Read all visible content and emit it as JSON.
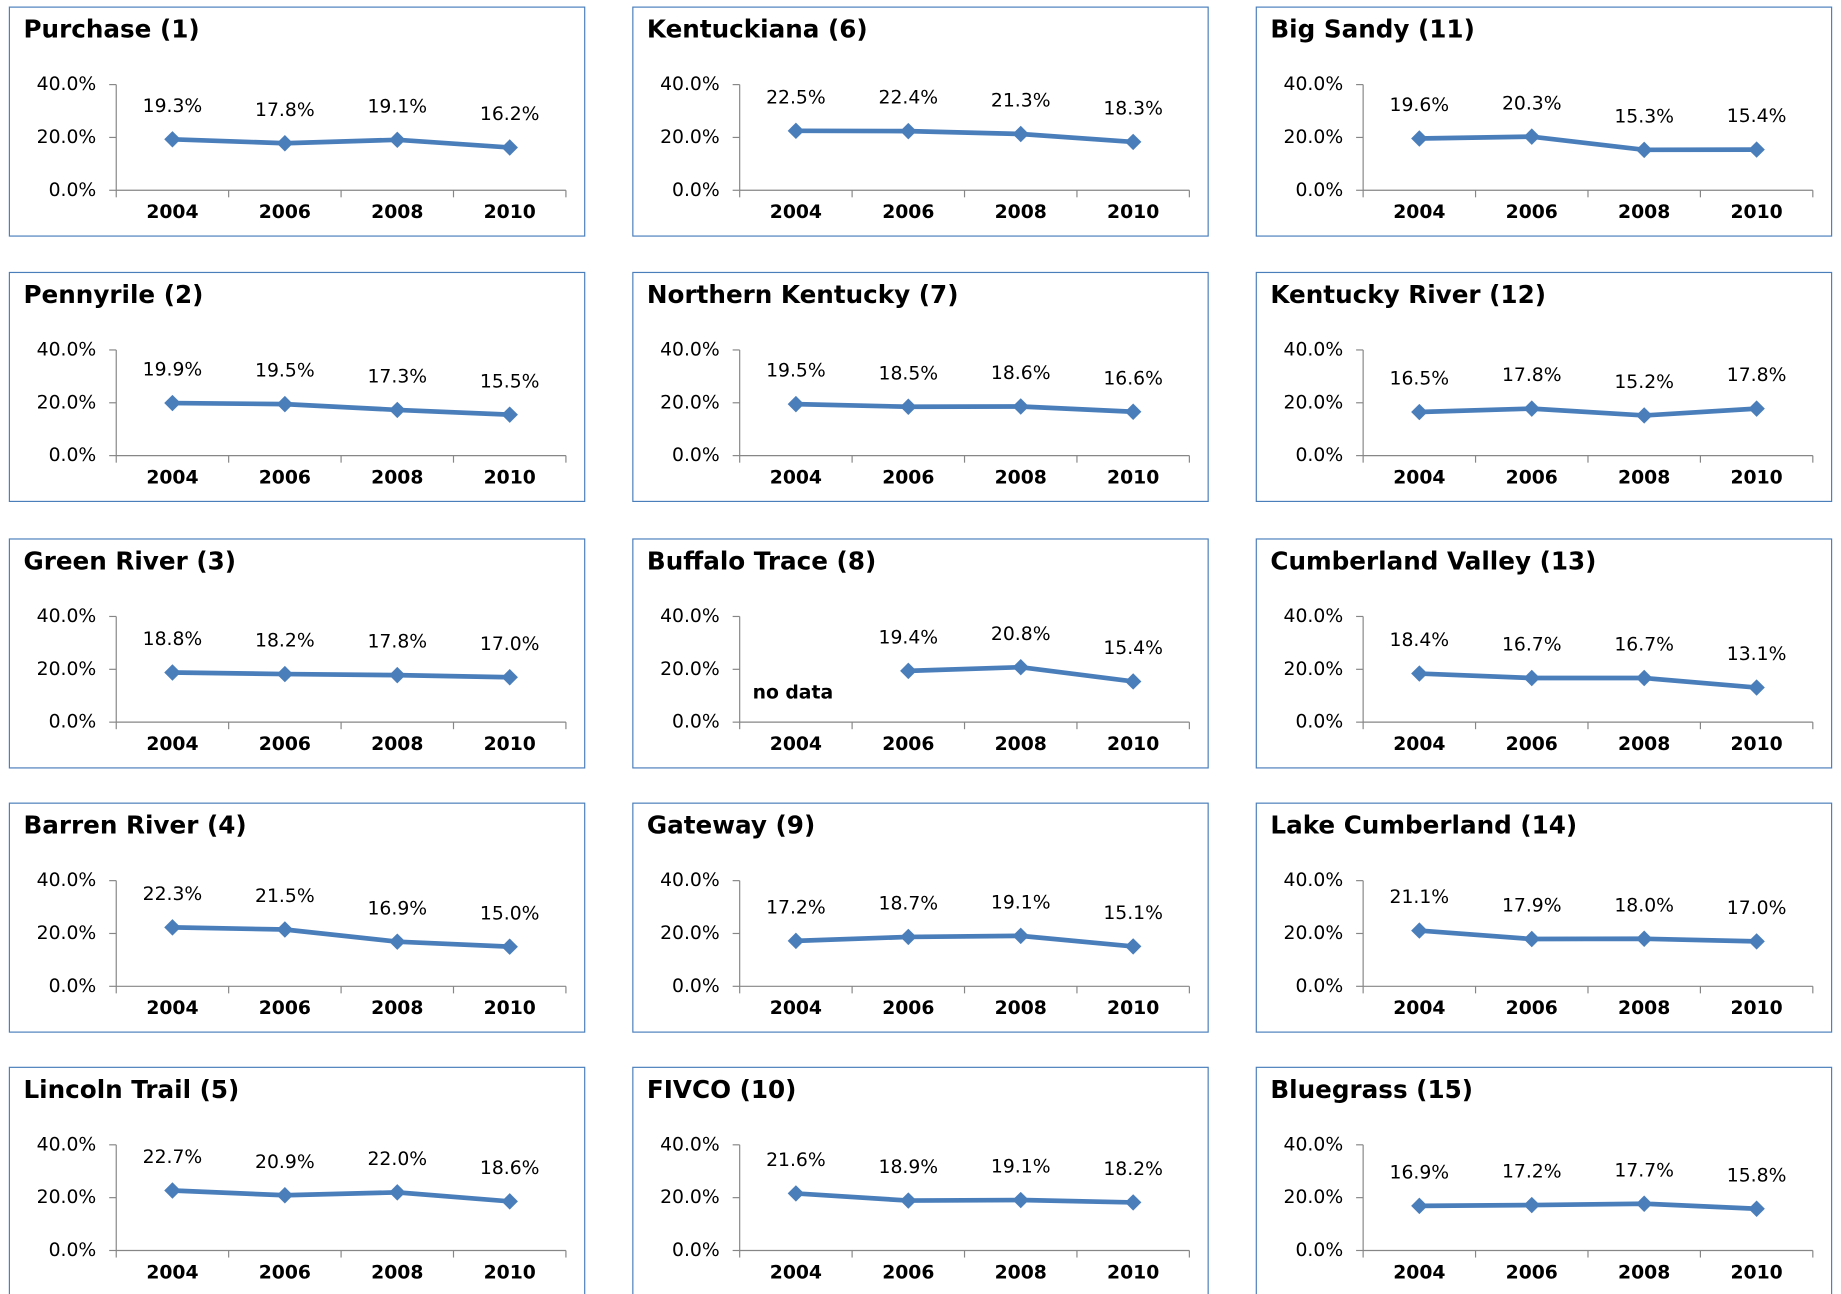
{
  "chart_data": [
    {
      "type": "line",
      "title": "Purchase (1)",
      "categories": [
        "2004",
        "2006",
        "2008",
        "2010"
      ],
      "values": [
        19.3,
        17.8,
        19.1,
        16.2
      ],
      "value_labels": [
        "19.3%",
        "17.8%",
        "19.1%",
        "16.2%"
      ],
      "color": "#4a7ebb",
      "ylim": [
        0,
        40
      ],
      "yticks": [
        {
          "value": 0,
          "label": "0.0%"
        },
        {
          "value": 20,
          "label": "20.0%"
        },
        {
          "value": 40,
          "label": "40.0%"
        }
      ]
    },
    {
      "type": "line",
      "title": "Pennyrile (2)",
      "categories": [
        "2004",
        "2006",
        "2008",
        "2010"
      ],
      "values": [
        19.9,
        19.5,
        17.3,
        15.5
      ],
      "value_labels": [
        "19.9%",
        "19.5%",
        "17.3%",
        "15.5%"
      ],
      "color": "#4a7ebb",
      "ylim": [
        0,
        40
      ],
      "yticks": [
        {
          "value": 0,
          "label": "0.0%"
        },
        {
          "value": 20,
          "label": "20.0%"
        },
        {
          "value": 40,
          "label": "40.0%"
        }
      ]
    },
    {
      "type": "line",
      "title": "Green River (3)",
      "categories": [
        "2004",
        "2006",
        "2008",
        "2010"
      ],
      "values": [
        18.8,
        18.2,
        17.8,
        17.0
      ],
      "value_labels": [
        "18.8%",
        "18.2%",
        "17.8%",
        "17.0%"
      ],
      "color": "#4a7ebb",
      "ylim": [
        0,
        40
      ],
      "yticks": [
        {
          "value": 0,
          "label": "0.0%"
        },
        {
          "value": 20,
          "label": "20.0%"
        },
        {
          "value": 40,
          "label": "40.0%"
        }
      ]
    },
    {
      "type": "line",
      "title": "Barren River (4)",
      "categories": [
        "2004",
        "2006",
        "2008",
        "2010"
      ],
      "values": [
        22.3,
        21.5,
        16.9,
        15.0
      ],
      "value_labels": [
        "22.3%",
        "21.5%",
        "16.9%",
        "15.0%"
      ],
      "color": "#4a7ebb",
      "ylim": [
        0,
        40
      ],
      "yticks": [
        {
          "value": 0,
          "label": "0.0%"
        },
        {
          "value": 20,
          "label": "20.0%"
        },
        {
          "value": 40,
          "label": "40.0%"
        }
      ]
    },
    {
      "type": "line",
      "title": "Lincoln Trail (5)",
      "categories": [
        "2004",
        "2006",
        "2008",
        "2010"
      ],
      "values": [
        22.7,
        20.9,
        22.0,
        18.6
      ],
      "value_labels": [
        "22.7%",
        "20.9%",
        "22.0%",
        "18.6%"
      ],
      "color": "#4a7ebb",
      "ylim": [
        0,
        40
      ],
      "yticks": [
        {
          "value": 0,
          "label": "0.0%"
        },
        {
          "value": 20,
          "label": "20.0%"
        },
        {
          "value": 40,
          "label": "40.0%"
        }
      ]
    },
    {
      "type": "line",
      "title": "Kentuckiana (6)",
      "categories": [
        "2004",
        "2006",
        "2008",
        "2010"
      ],
      "values": [
        22.5,
        22.4,
        21.3,
        18.3
      ],
      "value_labels": [
        "22.5%",
        "22.4%",
        "21.3%",
        "18.3%"
      ],
      "color": "#4a7ebb",
      "ylim": [
        0,
        40
      ],
      "yticks": [
        {
          "value": 0,
          "label": "0.0%"
        },
        {
          "value": 20,
          "label": "20.0%"
        },
        {
          "value": 40,
          "label": "40.0%"
        }
      ]
    },
    {
      "type": "line",
      "title": "Northern Kentucky (7)",
      "categories": [
        "2004",
        "2006",
        "2008",
        "2010"
      ],
      "values": [
        19.5,
        18.5,
        18.6,
        16.6
      ],
      "value_labels": [
        "19.5%",
        "18.5%",
        "18.6%",
        "16.6%"
      ],
      "color": "#4a7ebb",
      "ylim": [
        0,
        40
      ],
      "yticks": [
        {
          "value": 0,
          "label": "0.0%"
        },
        {
          "value": 20,
          "label": "20.0%"
        },
        {
          "value": 40,
          "label": "40.0%"
        }
      ]
    },
    {
      "type": "line",
      "title": "Buffalo Trace (8)",
      "categories": [
        "2004",
        "2006",
        "2008",
        "2010"
      ],
      "values": [
        null,
        19.4,
        20.8,
        15.4
      ],
      "value_labels": [
        null,
        "19.4%",
        "20.8%",
        "15.4%"
      ],
      "annotation": "no data",
      "color": "#4a7ebb",
      "ylim": [
        0,
        40
      ],
      "yticks": [
        {
          "value": 0,
          "label": "0.0%"
        },
        {
          "value": 20,
          "label": "20.0%"
        },
        {
          "value": 40,
          "label": "40.0%"
        }
      ]
    },
    {
      "type": "line",
      "title": "Gateway (9)",
      "categories": [
        "2004",
        "2006",
        "2008",
        "2010"
      ],
      "values": [
        17.2,
        18.7,
        19.1,
        15.1
      ],
      "value_labels": [
        "17.2%",
        "18.7%",
        "19.1%",
        "15.1%"
      ],
      "color": "#4a7ebb",
      "ylim": [
        0,
        40
      ],
      "yticks": [
        {
          "value": 0,
          "label": "0.0%"
        },
        {
          "value": 20,
          "label": "20.0%"
        },
        {
          "value": 40,
          "label": "40.0%"
        }
      ]
    },
    {
      "type": "line",
      "title": "FIVCO (10)",
      "categories": [
        "2004",
        "2006",
        "2008",
        "2010"
      ],
      "values": [
        21.6,
        18.9,
        19.1,
        18.2
      ],
      "value_labels": [
        "21.6%",
        "18.9%",
        "19.1%",
        "18.2%"
      ],
      "color": "#4a7ebb",
      "ylim": [
        0,
        40
      ],
      "yticks": [
        {
          "value": 0,
          "label": "0.0%"
        },
        {
          "value": 20,
          "label": "20.0%"
        },
        {
          "value": 40,
          "label": "40.0%"
        }
      ]
    },
    {
      "type": "line",
      "title": "Big Sandy (11)",
      "categories": [
        "2004",
        "2006",
        "2008",
        "2010"
      ],
      "values": [
        19.6,
        20.3,
        15.3,
        15.4
      ],
      "value_labels": [
        "19.6%",
        "20.3%",
        "15.3%",
        "15.4%"
      ],
      "color": "#4a7ebb",
      "ylim": [
        0,
        40
      ],
      "yticks": [
        {
          "value": 0,
          "label": "0.0%"
        },
        {
          "value": 20,
          "label": "20.0%"
        },
        {
          "value": 40,
          "label": "40.0%"
        }
      ]
    },
    {
      "type": "line",
      "title": "Kentucky River (12)",
      "categories": [
        "2004",
        "2006",
        "2008",
        "2010"
      ],
      "values": [
        16.5,
        17.8,
        15.2,
        17.8
      ],
      "value_labels": [
        "16.5%",
        "17.8%",
        "15.2%",
        "17.8%"
      ],
      "color": "#4a7ebb",
      "ylim": [
        0,
        40
      ],
      "yticks": [
        {
          "value": 0,
          "label": "0.0%"
        },
        {
          "value": 20,
          "label": "20.0%"
        },
        {
          "value": 40,
          "label": "40.0%"
        }
      ]
    },
    {
      "type": "line",
      "title": "Cumberland Valley (13)",
      "categories": [
        "2004",
        "2006",
        "2008",
        "2010"
      ],
      "values": [
        18.4,
        16.7,
        16.7,
        13.1
      ],
      "value_labels": [
        "18.4%",
        "16.7%",
        "16.7%",
        "13.1%"
      ],
      "color": "#4a7ebb",
      "ylim": [
        0,
        40
      ],
      "yticks": [
        {
          "value": 0,
          "label": "0.0%"
        },
        {
          "value": 20,
          "label": "20.0%"
        },
        {
          "value": 40,
          "label": "40.0%"
        }
      ]
    },
    {
      "type": "line",
      "title": "Lake Cumberland (14)",
      "categories": [
        "2004",
        "2006",
        "2008",
        "2010"
      ],
      "values": [
        21.1,
        17.9,
        18.0,
        17.0
      ],
      "value_labels": [
        "21.1%",
        "17.9%",
        "18.0%",
        "17.0%"
      ],
      "color": "#4a7ebb",
      "ylim": [
        0,
        40
      ],
      "yticks": [
        {
          "value": 0,
          "label": "0.0%"
        },
        {
          "value": 20,
          "label": "20.0%"
        },
        {
          "value": 40,
          "label": "40.0%"
        }
      ]
    },
    {
      "type": "line",
      "title": "Bluegrass (15)",
      "categories": [
        "2004",
        "2006",
        "2008",
        "2010"
      ],
      "values": [
        16.9,
        17.2,
        17.7,
        15.8
      ],
      "value_labels": [
        "16.9%",
        "17.2%",
        "17.7%",
        "15.8%"
      ],
      "color": "#4a7ebb",
      "ylim": [
        0,
        40
      ],
      "yticks": [
        {
          "value": 0,
          "label": "0.0%"
        },
        {
          "value": 20,
          "label": "20.0%"
        },
        {
          "value": 40,
          "label": "40.0%"
        }
      ]
    }
  ]
}
